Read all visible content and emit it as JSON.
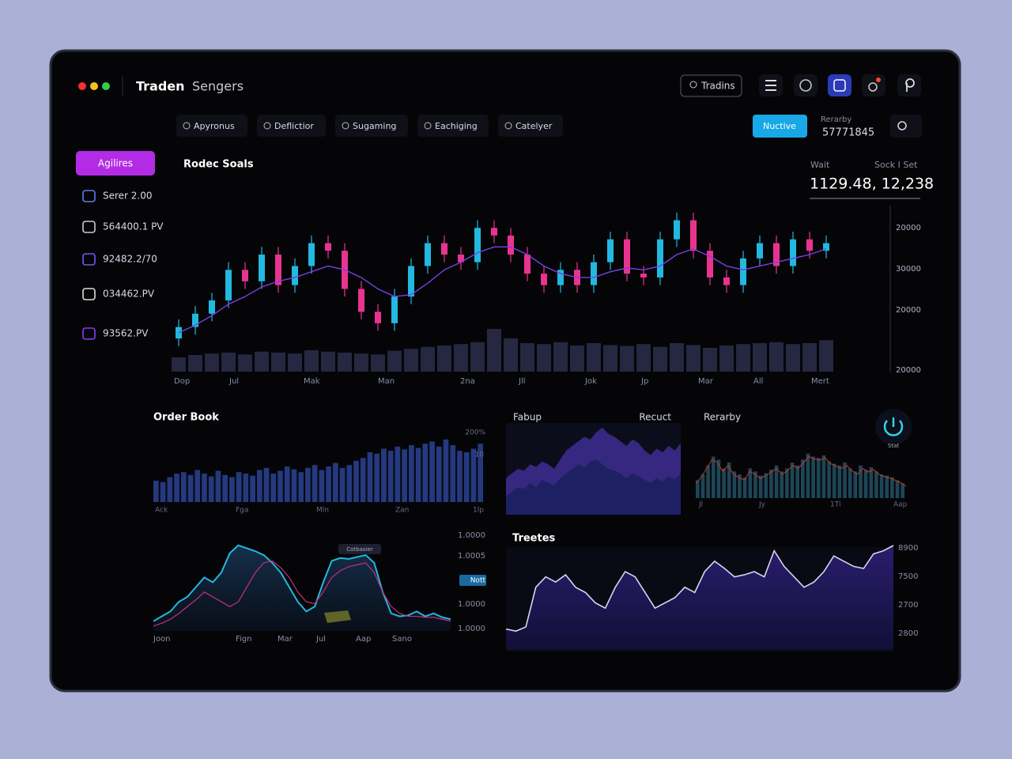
{
  "header": {
    "app": "Traden",
    "section": "Sengers",
    "search": "Tradins"
  },
  "nav": {
    "tabs": [
      "Apyronus",
      "Deflictior",
      "Sugaming",
      "Eachiging",
      "Catelyer"
    ],
    "button": "Nuctive",
    "stat_label": "Rerarby",
    "stat_value": "57771845"
  },
  "sidebar": {
    "button": "Agilires",
    "items": [
      "Serer 2.00",
      "564400.1 PV",
      "92482.2/70",
      "034462.PV",
      "93562.PV"
    ]
  },
  "main_chart": {
    "type": "candlestick",
    "title": "Rodec Soals",
    "label_left": "Wait",
    "label_right": "Sock I Set",
    "value": "1129.48, 12,238",
    "x_labels": [
      "Dop",
      "Jul",
      "Mak",
      "Man",
      "2na",
      "Jll",
      "Jok",
      "Jp",
      "Mar",
      "All",
      "Mert"
    ],
    "y_labels": [
      "20000",
      "30000",
      "20000",
      "20000"
    ],
    "ylim": [
      17000,
      34000
    ],
    "open": [
      18400,
      19600,
      21000,
      22400,
      25600,
      24400,
      27200,
      24000,
      26000,
      28400,
      27600,
      23600,
      21200,
      20000,
      22800,
      26000,
      28400,
      27200,
      26400,
      30000,
      29200,
      27200,
      25200,
      24000,
      25600,
      24000,
      26400,
      28800,
      25200,
      24800,
      28800,
      30800,
      27600,
      24800,
      24000,
      26800,
      28400,
      26000,
      28800,
      27600
    ],
    "high": [
      20400,
      21800,
      23200,
      26400,
      26400,
      28000,
      28000,
      26800,
      29200,
      29200,
      28400,
      24400,
      22000,
      23600,
      26800,
      29200,
      29200,
      28000,
      30800,
      30800,
      30000,
      28000,
      26000,
      26400,
      26400,
      27200,
      29600,
      29600,
      26000,
      29600,
      31600,
      31600,
      28400,
      25600,
      27600,
      29200,
      29200,
      29600,
      29600,
      29200
    ],
    "low": [
      17600,
      18800,
      20200,
      21600,
      23600,
      23600,
      23200,
      23200,
      25200,
      26800,
      22800,
      20400,
      19200,
      19200,
      22000,
      25200,
      26400,
      25600,
      25600,
      28400,
      26400,
      24400,
      23200,
      23200,
      23200,
      23200,
      25600,
      24400,
      24000,
      24000,
      28000,
      26800,
      24000,
      23200,
      23200,
      26000,
      25200,
      25200,
      26800,
      26800
    ],
    "close": [
      19600,
      21000,
      22400,
      25600,
      24400,
      27200,
      24000,
      26000,
      28400,
      27600,
      23600,
      21200,
      20000,
      22800,
      26000,
      28400,
      27200,
      26400,
      30000,
      29200,
      27200,
      25200,
      24000,
      25600,
      24000,
      26400,
      28800,
      25200,
      24800,
      28800,
      30800,
      27600,
      24800,
      24000,
      26800,
      28400,
      26000,
      28800,
      27600,
      28400
    ],
    "ma": [
      19000,
      19800,
      20800,
      22000,
      22800,
      23800,
      24400,
      24800,
      25400,
      26000,
      25600,
      24800,
      23600,
      22800,
      23000,
      24200,
      25600,
      26400,
      27400,
      28000,
      28000,
      27200,
      26000,
      25200,
      24800,
      24800,
      25400,
      25800,
      25600,
      26000,
      27200,
      27800,
      27000,
      26000,
      25600,
      26000,
      26400,
      26800,
      27200,
      27800
    ],
    "volume": [
      30,
      35,
      38,
      40,
      36,
      42,
      40,
      38,
      45,
      42,
      40,
      38,
      36,
      44,
      48,
      52,
      55,
      58,
      62,
      90,
      70,
      60,
      58,
      62,
      55,
      60,
      56,
      54,
      58,
      52,
      60,
      56,
      50,
      55,
      58,
      60,
      62,
      58,
      60,
      66
    ],
    "volume_lim": [
      0,
      100
    ],
    "up_color": "#22b8e0",
    "down_color": "#e8348f",
    "ma_color": "#7b3fe4"
  },
  "order_book": {
    "type": "bar",
    "title": "Order Book",
    "y_labels": [
      "200%",
      "10"
    ],
    "x_labels": [
      "Ack",
      "Fga",
      "Mln",
      "Zan",
      "1lp"
    ],
    "ylim": [
      0,
      100
    ],
    "values": [
      30,
      28,
      35,
      40,
      42,
      38,
      45,
      40,
      36,
      44,
      38,
      35,
      42,
      40,
      37,
      45,
      48,
      40,
      44,
      50,
      46,
      42,
      48,
      52,
      45,
      50,
      55,
      48,
      52,
      58,
      62,
      70,
      68,
      75,
      72,
      78,
      74,
      80,
      76,
      82,
      85,
      78,
      88,
      80,
      72,
      70,
      75,
      82
    ],
    "color": "#24397e"
  },
  "flow": {
    "type": "area",
    "ylim": [
      0,
      100
    ],
    "series": [
      {
        "name": "Fabup",
        "color": "#3b2b8c",
        "values": [
          40,
          45,
          50,
          48,
          55,
          52,
          58,
          55,
          50,
          60,
          70,
          75,
          80,
          85,
          82,
          90,
          95,
          88,
          85,
          80,
          75,
          82,
          78,
          70,
          65,
          72,
          68,
          75,
          70,
          78
        ]
      },
      {
        "name": "Recuct",
        "color": "#1b2060",
        "values": [
          20,
          25,
          30,
          28,
          35,
          30,
          38,
          35,
          32,
          40,
          45,
          50,
          55,
          52,
          58,
          60,
          55,
          50,
          48,
          45,
          40,
          45,
          42,
          38,
          35,
          40,
          36,
          42,
          38,
          45
        ]
      }
    ]
  },
  "rerarby": {
    "type": "bar-line",
    "title": "Rerarby",
    "gauge_label": "Stat",
    "x_labels": [
      "Jl",
      "Jy",
      "1Ti",
      "Aap"
    ],
    "ylim": [
      0,
      100
    ],
    "values": [
      30,
      40,
      55,
      70,
      65,
      50,
      60,
      45,
      40,
      35,
      50,
      45,
      38,
      42,
      48,
      55,
      45,
      50,
      60,
      55,
      65,
      75,
      70,
      68,
      72,
      62,
      58,
      55,
      60,
      50,
      45,
      55,
      48,
      52,
      45,
      40,
      38,
      35,
      30,
      25
    ],
    "line": [
      25,
      35,
      50,
      65,
      60,
      45,
      55,
      40,
      35,
      30,
      45,
      40,
      33,
      38,
      44,
      50,
      40,
      46,
      55,
      50,
      60,
      70,
      66,
      64,
      68,
      58,
      54,
      50,
      55,
      46,
      40,
      50,
      44,
      48,
      40,
      36,
      34,
      30,
      26,
      20
    ],
    "color": "#1d4656",
    "line_color": "#c0392b"
  },
  "price_chart": {
    "type": "area",
    "y_labels": [
      "1.0000",
      "1.0005",
      "Nott",
      "1.0000",
      "1.0000"
    ],
    "x_labels": [
      "Joon",
      "Fign",
      "Mar",
      "Jul",
      "Aap",
      "Sano"
    ],
    "annotation": "Cotbasier",
    "ylim": [
      0,
      100
    ],
    "values": [
      10,
      15,
      20,
      30,
      35,
      45,
      55,
      50,
      60,
      80,
      88,
      85,
      82,
      78,
      70,
      60,
      45,
      30,
      20,
      25,
      50,
      72,
      75,
      74,
      76,
      78,
      70,
      40,
      18,
      15,
      16,
      20,
      15,
      18,
      14,
      12
    ],
    "line": [
      5,
      8,
      12,
      18,
      25,
      32,
      40,
      35,
      30,
      25,
      30,
      45,
      60,
      70,
      72,
      65,
      55,
      40,
      30,
      28,
      40,
      55,
      62,
      66,
      68,
      70,
      60,
      40,
      25,
      18,
      15,
      15,
      14,
      14,
      12,
      10
    ],
    "color": "#22b8e0",
    "line_color": "#c2307f"
  },
  "treetes": {
    "type": "area",
    "title": "Treetes",
    "y_labels": [
      "8900",
      "7500",
      "2700",
      "2800"
    ],
    "ylim": [
      0,
      100
    ],
    "values": [
      20,
      18,
      22,
      60,
      70,
      65,
      72,
      60,
      55,
      45,
      40,
      60,
      75,
      70,
      55,
      40,
      45,
      50,
      60,
      55,
      75,
      85,
      78,
      70,
      72,
      75,
      70,
      95,
      80,
      70,
      60,
      65,
      75,
      90,
      85,
      80,
      78,
      92,
      95,
      100
    ],
    "color": "#d6d6f0"
  }
}
